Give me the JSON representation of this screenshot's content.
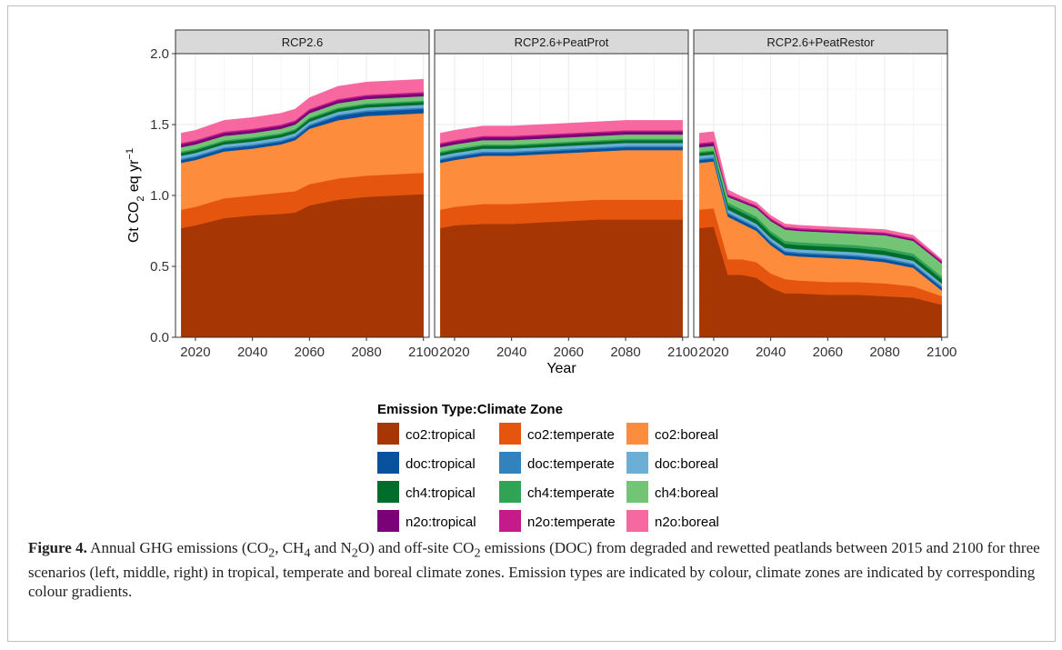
{
  "chart_data": {
    "type": "area",
    "stacked": true,
    "ylabel_parts": {
      "main": "Gt CO",
      "sub": "2",
      "mid": " eq  yr",
      "sup": "−1"
    },
    "xlabel": "Year",
    "ylim": [
      0,
      2.0
    ],
    "xlim": [
      2013,
      2102
    ],
    "yticks": [
      0.0,
      0.5,
      1.0,
      1.5,
      2.0
    ],
    "ytick_labels": [
      "0.0",
      "0.5",
      "1.0",
      "1.5",
      "2.0"
    ],
    "xticks": [
      2020,
      2040,
      2060,
      2080,
      2100
    ],
    "xtick_labels": [
      "2020",
      "2040",
      "2060",
      "2080",
      "2100"
    ],
    "grid": true,
    "legend": {
      "title": "Emission Type:Climate Zone",
      "placement": "bottom",
      "items": [
        {
          "label": "co2:tropical",
          "color": "#a63603"
        },
        {
          "label": "co2:temperate",
          "color": "#e6550d"
        },
        {
          "label": "co2:boreal",
          "color": "#fd8d3c"
        },
        {
          "label": "doc:tropical",
          "color": "#08519c"
        },
        {
          "label": "doc:temperate",
          "color": "#3182bd"
        },
        {
          "label": "doc:boreal",
          "color": "#6baed6"
        },
        {
          "label": "ch4:tropical",
          "color": "#006d2c"
        },
        {
          "label": "ch4:temperate",
          "color": "#31a354"
        },
        {
          "label": "ch4:boreal",
          "color": "#74c476"
        },
        {
          "label": "n2o:tropical",
          "color": "#7a0177"
        },
        {
          "label": "n2o:temperate",
          "color": "#c51b8a"
        },
        {
          "label": "n2o:boreal",
          "color": "#f768a1"
        }
      ]
    },
    "panels": [
      {
        "title": "RCP2.6",
        "x": [
          2015,
          2020,
          2030,
          2040,
          2050,
          2055,
          2060,
          2070,
          2080,
          2090,
          2100
        ],
        "series": [
          {
            "name": "co2:tropical",
            "values": [
              0.77,
              0.79,
              0.84,
              0.86,
              0.87,
              0.88,
              0.93,
              0.97,
              0.99,
              1.0,
              1.01
            ]
          },
          {
            "name": "co2:temperate",
            "values": [
              0.13,
              0.13,
              0.14,
              0.14,
              0.15,
              0.15,
              0.15,
              0.15,
              0.15,
              0.15,
              0.15
            ]
          },
          {
            "name": "co2:boreal",
            "values": [
              0.33,
              0.33,
              0.33,
              0.33,
              0.34,
              0.36,
              0.39,
              0.41,
              0.42,
              0.42,
              0.42
            ]
          },
          {
            "name": "doc:tropical",
            "values": [
              0.02,
              0.02,
              0.02,
              0.02,
              0.02,
              0.02,
              0.02,
              0.03,
              0.03,
              0.03,
              0.03
            ]
          },
          {
            "name": "doc:temperate",
            "values": [
              0.01,
              0.01,
              0.01,
              0.01,
              0.01,
              0.01,
              0.01,
              0.01,
              0.01,
              0.01,
              0.01
            ]
          },
          {
            "name": "doc:boreal",
            "values": [
              0.02,
              0.02,
              0.02,
              0.02,
              0.02,
              0.02,
              0.02,
              0.02,
              0.02,
              0.02,
              0.02
            ]
          },
          {
            "name": "ch4:tropical",
            "values": [
              0.02,
              0.02,
              0.02,
              0.02,
              0.02,
              0.02,
              0.02,
              0.02,
              0.02,
              0.02,
              0.02
            ]
          },
          {
            "name": "ch4:temperate",
            "values": [
              0.01,
              0.01,
              0.01,
              0.01,
              0.01,
              0.01,
              0.01,
              0.01,
              0.01,
              0.01,
              0.01
            ]
          },
          {
            "name": "ch4:boreal",
            "values": [
              0.03,
              0.03,
              0.03,
              0.03,
              0.03,
              0.03,
              0.03,
              0.03,
              0.03,
              0.03,
              0.03
            ]
          },
          {
            "name": "n2o:tropical",
            "values": [
              0.02,
              0.02,
              0.02,
              0.02,
              0.02,
              0.02,
              0.02,
              0.02,
              0.02,
              0.02,
              0.02
            ]
          },
          {
            "name": "n2o:temperate",
            "values": [
              0.01,
              0.01,
              0.01,
              0.01,
              0.01,
              0.01,
              0.01,
              0.01,
              0.01,
              0.01,
              0.01
            ]
          },
          {
            "name": "n2o:boreal",
            "values": [
              0.07,
              0.07,
              0.08,
              0.08,
              0.08,
              0.08,
              0.08,
              0.09,
              0.09,
              0.09,
              0.09
            ]
          }
        ]
      },
      {
        "title": "RCP2.6+PeatProt",
        "x": [
          2015,
          2020,
          2030,
          2040,
          2050,
          2060,
          2070,
          2080,
          2090,
          2100
        ],
        "series": [
          {
            "name": "co2:tropical",
            "values": [
              0.77,
              0.79,
              0.8,
              0.8,
              0.81,
              0.82,
              0.83,
              0.83,
              0.83,
              0.83
            ]
          },
          {
            "name": "co2:temperate",
            "values": [
              0.13,
              0.13,
              0.14,
              0.14,
              0.14,
              0.14,
              0.14,
              0.14,
              0.14,
              0.14
            ]
          },
          {
            "name": "co2:boreal",
            "values": [
              0.33,
              0.33,
              0.34,
              0.34,
              0.34,
              0.34,
              0.34,
              0.35,
              0.35,
              0.35
            ]
          },
          {
            "name": "doc:tropical",
            "values": [
              0.02,
              0.02,
              0.02,
              0.02,
              0.02,
              0.02,
              0.02,
              0.02,
              0.02,
              0.02
            ]
          },
          {
            "name": "doc:temperate",
            "values": [
              0.01,
              0.01,
              0.01,
              0.01,
              0.01,
              0.01,
              0.01,
              0.01,
              0.01,
              0.01
            ]
          },
          {
            "name": "doc:boreal",
            "values": [
              0.02,
              0.02,
              0.02,
              0.02,
              0.02,
              0.02,
              0.02,
              0.02,
              0.02,
              0.02
            ]
          },
          {
            "name": "ch4:tropical",
            "values": [
              0.02,
              0.02,
              0.02,
              0.02,
              0.02,
              0.02,
              0.02,
              0.02,
              0.02,
              0.02
            ]
          },
          {
            "name": "ch4:temperate",
            "values": [
              0.01,
              0.01,
              0.01,
              0.01,
              0.01,
              0.01,
              0.01,
              0.01,
              0.01,
              0.01
            ]
          },
          {
            "name": "ch4:boreal",
            "values": [
              0.03,
              0.03,
              0.03,
              0.03,
              0.03,
              0.03,
              0.03,
              0.03,
              0.03,
              0.03
            ]
          },
          {
            "name": "n2o:tropical",
            "values": [
              0.02,
              0.02,
              0.02,
              0.02,
              0.02,
              0.02,
              0.02,
              0.02,
              0.02,
              0.02
            ]
          },
          {
            "name": "n2o:temperate",
            "values": [
              0.01,
              0.01,
              0.01,
              0.01,
              0.01,
              0.01,
              0.01,
              0.01,
              0.01,
              0.01
            ]
          },
          {
            "name": "n2o:boreal",
            "values": [
              0.07,
              0.07,
              0.07,
              0.07,
              0.07,
              0.07,
              0.07,
              0.07,
              0.07,
              0.07
            ]
          }
        ]
      },
      {
        "title": "RCP2.6+PeatRestor",
        "x": [
          2015,
          2020,
          2025,
          2030,
          2035,
          2040,
          2045,
          2050,
          2060,
          2070,
          2080,
          2090,
          2100
        ],
        "series": [
          {
            "name": "co2:tropical",
            "values": [
              0.77,
              0.78,
              0.44,
              0.44,
              0.42,
              0.35,
              0.31,
              0.31,
              0.3,
              0.3,
              0.29,
              0.28,
              0.23
            ]
          },
          {
            "name": "co2:temperate",
            "values": [
              0.13,
              0.13,
              0.11,
              0.11,
              0.11,
              0.1,
              0.1,
              0.09,
              0.09,
              0.09,
              0.09,
              0.08,
              0.06
            ]
          },
          {
            "name": "co2:boreal",
            "values": [
              0.33,
              0.33,
              0.3,
              0.25,
              0.22,
              0.2,
              0.17,
              0.17,
              0.17,
              0.16,
              0.15,
              0.13,
              0.04
            ]
          },
          {
            "name": "doc:tropical",
            "values": [
              0.02,
              0.02,
              0.02,
              0.02,
              0.02,
              0.02,
              0.02,
              0.02,
              0.02,
              0.02,
              0.02,
              0.02,
              0.02
            ]
          },
          {
            "name": "doc:temperate",
            "values": [
              0.01,
              0.01,
              0.01,
              0.01,
              0.01,
              0.01,
              0.01,
              0.01,
              0.01,
              0.01,
              0.01,
              0.01,
              0.01
            ]
          },
          {
            "name": "doc:boreal",
            "values": [
              0.02,
              0.02,
              0.02,
              0.02,
              0.02,
              0.02,
              0.02,
              0.02,
              0.02,
              0.02,
              0.02,
              0.02,
              0.02
            ]
          },
          {
            "name": "ch4:tropical",
            "values": [
              0.02,
              0.02,
              0.03,
              0.03,
              0.03,
              0.03,
              0.03,
              0.03,
              0.03,
              0.03,
              0.03,
              0.03,
              0.03
            ]
          },
          {
            "name": "ch4:temperate",
            "values": [
              0.01,
              0.01,
              0.02,
              0.02,
              0.02,
              0.02,
              0.02,
              0.02,
              0.02,
              0.02,
              0.02,
              0.02,
              0.02
            ]
          },
          {
            "name": "ch4:boreal",
            "values": [
              0.03,
              0.03,
              0.04,
              0.05,
              0.06,
              0.07,
              0.08,
              0.08,
              0.08,
              0.08,
              0.09,
              0.09,
              0.09
            ]
          },
          {
            "name": "n2o:tropical",
            "values": [
              0.02,
              0.02,
              0.01,
              0.01,
              0.01,
              0.01,
              0.01,
              0.01,
              0.01,
              0.01,
              0.01,
              0.01,
              0.01
            ]
          },
          {
            "name": "n2o:temperate",
            "values": [
              0.01,
              0.01,
              0.01,
              0.01,
              0.01,
              0.01,
              0.01,
              0.01,
              0.01,
              0.01,
              0.01,
              0.01,
              0.01
            ]
          },
          {
            "name": "n2o:boreal",
            "values": [
              0.07,
              0.07,
              0.03,
              0.02,
              0.02,
              0.02,
              0.02,
              0.02,
              0.02,
              0.02,
              0.02,
              0.02,
              0.01
            ]
          }
        ]
      }
    ]
  },
  "caption": {
    "label": "Figure 4.",
    "t1": " Annual GHG emissions (CO",
    "s1": "2",
    "t2": ", CH",
    "s2": "4",
    "t3": " and N",
    "s3": "2",
    "t4": "O) and off-site CO",
    "s4": "2",
    "t5": " emissions (DOC) from degraded and rewetted peatlands between 2015 and 2100 for three scenarios (left, middle, right) in tropical, temperate and boreal climate zones. Emission types are indicated by colour, climate zones are indicated by corresponding colour gradients."
  }
}
